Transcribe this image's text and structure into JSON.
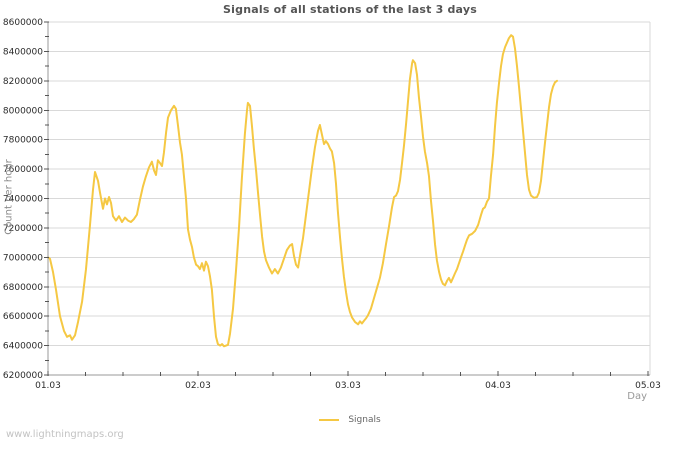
{
  "watermark": "www.lightningmaps.org",
  "chart_data": {
    "type": "line",
    "title": "Signals of all stations of the last 3 days",
    "xlabel": "Day",
    "ylabel": "Count per hour",
    "grid": "horizontal",
    "legend_position": "bottom-center",
    "xlim": [
      0,
      4
    ],
    "ylim": [
      6200000,
      8600000
    ],
    "y_major_step": 200000,
    "y_minor_step": 100000,
    "x_minor_step": 0.25,
    "x_ticks": [
      {
        "t": 0,
        "label": "01.03"
      },
      {
        "t": 1,
        "label": "02.03"
      },
      {
        "t": 2,
        "label": "03.03"
      },
      {
        "t": 3,
        "label": "04.03"
      },
      {
        "t": 4,
        "label": "05.03"
      }
    ],
    "colors": {
      "line": "#f5c843",
      "grid": "#d9d9d9",
      "axis": "#9a9a9a",
      "tick": "#555555",
      "tick_label": "#2b2b2b",
      "title": "#555555",
      "axis_title": "#8c8c8c"
    },
    "series": [
      {
        "name": "Signals",
        "color": "#f5c843",
        "x_unit": "days since 01.03",
        "points": [
          [
            0,
            7000000
          ],
          [
            0.013,
            6990000
          ],
          [
            0.033,
            6900000
          ],
          [
            0.053,
            6780000
          ],
          [
            0.08,
            6600000
          ],
          [
            0.107,
            6500000
          ],
          [
            0.127,
            6460000
          ],
          [
            0.147,
            6470000
          ],
          [
            0.16,
            6440000
          ],
          [
            0.18,
            6470000
          ],
          [
            0.2,
            6560000
          ],
          [
            0.227,
            6700000
          ],
          [
            0.253,
            6920000
          ],
          [
            0.28,
            7220000
          ],
          [
            0.3,
            7460000
          ],
          [
            0.313,
            7580000
          ],
          [
            0.333,
            7520000
          ],
          [
            0.347,
            7440000
          ],
          [
            0.367,
            7330000
          ],
          [
            0.38,
            7400000
          ],
          [
            0.393,
            7360000
          ],
          [
            0.407,
            7410000
          ],
          [
            0.42,
            7370000
          ],
          [
            0.433,
            7280000
          ],
          [
            0.453,
            7250000
          ],
          [
            0.473,
            7280000
          ],
          [
            0.493,
            7240000
          ],
          [
            0.513,
            7270000
          ],
          [
            0.533,
            7250000
          ],
          [
            0.553,
            7240000
          ],
          [
            0.573,
            7260000
          ],
          [
            0.593,
            7290000
          ],
          [
            0.613,
            7390000
          ],
          [
            0.633,
            7480000
          ],
          [
            0.653,
            7550000
          ],
          [
            0.673,
            7610000
          ],
          [
            0.693,
            7650000
          ],
          [
            0.707,
            7590000
          ],
          [
            0.72,
            7560000
          ],
          [
            0.733,
            7660000
          ],
          [
            0.747,
            7640000
          ],
          [
            0.76,
            7620000
          ],
          [
            0.773,
            7710000
          ],
          [
            0.787,
            7850000
          ],
          [
            0.8,
            7950000
          ],
          [
            0.82,
            8000000
          ],
          [
            0.84,
            8030000
          ],
          [
            0.853,
            8010000
          ],
          [
            0.867,
            7890000
          ],
          [
            0.88,
            7780000
          ],
          [
            0.893,
            7700000
          ],
          [
            0.907,
            7540000
          ],
          [
            0.92,
            7400000
          ],
          [
            0.933,
            7190000
          ],
          [
            0.947,
            7120000
          ],
          [
            0.96,
            7070000
          ],
          [
            0.973,
            7000000
          ],
          [
            0.987,
            6950000
          ],
          [
            1,
            6940000
          ],
          [
            1.013,
            6920000
          ],
          [
            1.027,
            6960000
          ],
          [
            1.04,
            6910000
          ],
          [
            1.053,
            6970000
          ],
          [
            1.067,
            6940000
          ],
          [
            1.08,
            6870000
          ],
          [
            1.093,
            6780000
          ],
          [
            1.107,
            6590000
          ],
          [
            1.12,
            6460000
          ],
          [
            1.133,
            6410000
          ],
          [
            1.147,
            6400000
          ],
          [
            1.16,
            6410000
          ],
          [
            1.173,
            6395000
          ],
          [
            1.187,
            6400000
          ],
          [
            1.2,
            6405000
          ],
          [
            1.213,
            6480000
          ],
          [
            1.233,
            6650000
          ],
          [
            1.253,
            6900000
          ],
          [
            1.273,
            7190000
          ],
          [
            1.293,
            7540000
          ],
          [
            1.313,
            7840000
          ],
          [
            1.327,
            8000000
          ],
          [
            1.333,
            8050000
          ],
          [
            1.347,
            8030000
          ],
          [
            1.36,
            7890000
          ],
          [
            1.373,
            7740000
          ],
          [
            1.387,
            7590000
          ],
          [
            1.4,
            7440000
          ],
          [
            1.413,
            7290000
          ],
          [
            1.427,
            7140000
          ],
          [
            1.44,
            7040000
          ],
          [
            1.453,
            6980000
          ],
          [
            1.473,
            6930000
          ],
          [
            1.493,
            6890000
          ],
          [
            1.513,
            6920000
          ],
          [
            1.533,
            6890000
          ],
          [
            1.553,
            6930000
          ],
          [
            1.573,
            6990000
          ],
          [
            1.593,
            7050000
          ],
          [
            1.613,
            7080000
          ],
          [
            1.627,
            7090000
          ],
          [
            1.64,
            7010000
          ],
          [
            1.653,
            6950000
          ],
          [
            1.667,
            6930000
          ],
          [
            1.68,
            7010000
          ],
          [
            1.7,
            7130000
          ],
          [
            1.72,
            7290000
          ],
          [
            1.74,
            7450000
          ],
          [
            1.76,
            7610000
          ],
          [
            1.78,
            7750000
          ],
          [
            1.8,
            7860000
          ],
          [
            1.813,
            7900000
          ],
          [
            1.827,
            7830000
          ],
          [
            1.84,
            7770000
          ],
          [
            1.853,
            7790000
          ],
          [
            1.867,
            7770000
          ],
          [
            1.88,
            7740000
          ],
          [
            1.893,
            7720000
          ],
          [
            1.907,
            7640000
          ],
          [
            1.92,
            7500000
          ],
          [
            1.933,
            7310000
          ],
          [
            1.947,
            7130000
          ],
          [
            1.96,
            6990000
          ],
          [
            1.973,
            6870000
          ],
          [
            1.987,
            6760000
          ],
          [
            2,
            6680000
          ],
          [
            2.013,
            6630000
          ],
          [
            2.027,
            6590000
          ],
          [
            2.047,
            6560000
          ],
          [
            2.067,
            6545000
          ],
          [
            2.08,
            6565000
          ],
          [
            2.093,
            6550000
          ],
          [
            2.107,
            6570000
          ],
          [
            2.12,
            6585000
          ],
          [
            2.133,
            6605000
          ],
          [
            2.153,
            6650000
          ],
          [
            2.173,
            6720000
          ],
          [
            2.193,
            6790000
          ],
          [
            2.213,
            6860000
          ],
          [
            2.233,
            6960000
          ],
          [
            2.253,
            7090000
          ],
          [
            2.273,
            7210000
          ],
          [
            2.293,
            7340000
          ],
          [
            2.307,
            7410000
          ],
          [
            2.32,
            7420000
          ],
          [
            2.333,
            7450000
          ],
          [
            2.347,
            7530000
          ],
          [
            2.36,
            7640000
          ],
          [
            2.373,
            7760000
          ],
          [
            2.387,
            7910000
          ],
          [
            2.4,
            8060000
          ],
          [
            2.413,
            8210000
          ],
          [
            2.427,
            8320000
          ],
          [
            2.433,
            8340000
          ],
          [
            2.447,
            8320000
          ],
          [
            2.46,
            8240000
          ],
          [
            2.473,
            8090000
          ],
          [
            2.487,
            7950000
          ],
          [
            2.5,
            7820000
          ],
          [
            2.513,
            7720000
          ],
          [
            2.527,
            7640000
          ],
          [
            2.54,
            7550000
          ],
          [
            2.553,
            7390000
          ],
          [
            2.567,
            7240000
          ],
          [
            2.58,
            7090000
          ],
          [
            2.593,
            6980000
          ],
          [
            2.607,
            6900000
          ],
          [
            2.62,
            6850000
          ],
          [
            2.633,
            6820000
          ],
          [
            2.647,
            6810000
          ],
          [
            2.66,
            6840000
          ],
          [
            2.673,
            6860000
          ],
          [
            2.687,
            6830000
          ],
          [
            2.7,
            6860000
          ],
          [
            2.713,
            6890000
          ],
          [
            2.727,
            6920000
          ],
          [
            2.74,
            6960000
          ],
          [
            2.753,
            7000000
          ],
          [
            2.767,
            7040000
          ],
          [
            2.78,
            7080000
          ],
          [
            2.793,
            7120000
          ],
          [
            2.807,
            7150000
          ],
          [
            2.827,
            7160000
          ],
          [
            2.847,
            7180000
          ],
          [
            2.867,
            7220000
          ],
          [
            2.887,
            7290000
          ],
          [
            2.9,
            7330000
          ],
          [
            2.913,
            7340000
          ],
          [
            2.927,
            7380000
          ],
          [
            2.94,
            7400000
          ],
          [
            2.953,
            7550000
          ],
          [
            2.967,
            7700000
          ],
          [
            2.98,
            7890000
          ],
          [
            2.993,
            8050000
          ],
          [
            3.007,
            8190000
          ],
          [
            3.02,
            8300000
          ],
          [
            3.033,
            8380000
          ],
          [
            3.047,
            8430000
          ],
          [
            3.06,
            8460000
          ],
          [
            3.073,
            8490000
          ],
          [
            3.087,
            8510000
          ],
          [
            3.1,
            8500000
          ],
          [
            3.113,
            8420000
          ],
          [
            3.127,
            8300000
          ],
          [
            3.14,
            8160000
          ],
          [
            3.153,
            8010000
          ],
          [
            3.167,
            7860000
          ],
          [
            3.18,
            7710000
          ],
          [
            3.193,
            7560000
          ],
          [
            3.207,
            7460000
          ],
          [
            3.22,
            7420000
          ],
          [
            3.24,
            7405000
          ],
          [
            3.26,
            7410000
          ],
          [
            3.273,
            7440000
          ],
          [
            3.287,
            7520000
          ],
          [
            3.3,
            7650000
          ],
          [
            3.313,
            7780000
          ],
          [
            3.327,
            7900000
          ],
          [
            3.34,
            8020000
          ],
          [
            3.353,
            8110000
          ],
          [
            3.367,
            8160000
          ],
          [
            3.38,
            8190000
          ],
          [
            3.393,
            8200000
          ]
        ]
      }
    ]
  }
}
